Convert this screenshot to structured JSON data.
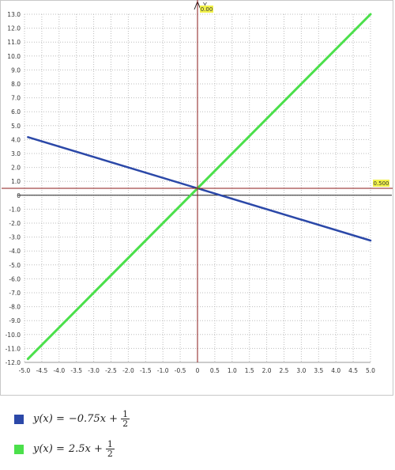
{
  "chart_data": {
    "type": "line",
    "title": "",
    "xlabel": "",
    "ylabel": "Y",
    "xlim": [
      -5,
      5
    ],
    "ylim": [
      -12,
      13
    ],
    "grid": true,
    "x_ticks": [
      "-5.0",
      "-4.5",
      "-4.0",
      "-3.5",
      "-3.0",
      "-2.5",
      "-2.0",
      "-1.5",
      "-1.0",
      "-0.5",
      "0",
      "0.5",
      "1.0",
      "1.5",
      "2.0",
      "2.5",
      "3.0",
      "3.5",
      "4.0",
      "4.5",
      "5.0"
    ],
    "y_ticks": [
      "13.0",
      "12.0",
      "11.0",
      "10.0",
      "9.0",
      "8.0",
      "7.0",
      "6.0",
      "5.0",
      "4.0",
      "3.0",
      "2.0",
      "1.0",
      "0",
      "-1.0",
      "-2.0",
      "-3.0",
      "-4.0",
      "-5.0",
      "-6.0",
      "-7.0",
      "-8.0",
      "-9.0",
      "-10.0",
      "-11.0",
      "-12.0"
    ],
    "series": [
      {
        "name": "y(x) = −0.75x + 1/2",
        "color": "#2b48a8",
        "x": [
          -4.9,
          5.0
        ],
        "y": [
          4.175,
          -3.25
        ]
      },
      {
        "name": "y(x) = 2.5x + 1/2",
        "color": "#4be04b",
        "x": [
          -4.9,
          5.0
        ],
        "y": [
          -11.75,
          13.0
        ]
      }
    ],
    "cursor": {
      "x_label": "0.00",
      "y_label": "0.500",
      "color": "#8b1a1a",
      "badge_color": "#f2f24a"
    }
  },
  "legend": {
    "items": [
      {
        "lhs": "y(x) = ",
        "rhs": "−0.75x + ",
        "num": "1",
        "den": "2",
        "color": "#2b48a8"
      },
      {
        "lhs": "y(x) = ",
        "rhs": "2.5x + ",
        "num": "1",
        "den": "2",
        "color": "#4be04b"
      }
    ]
  }
}
